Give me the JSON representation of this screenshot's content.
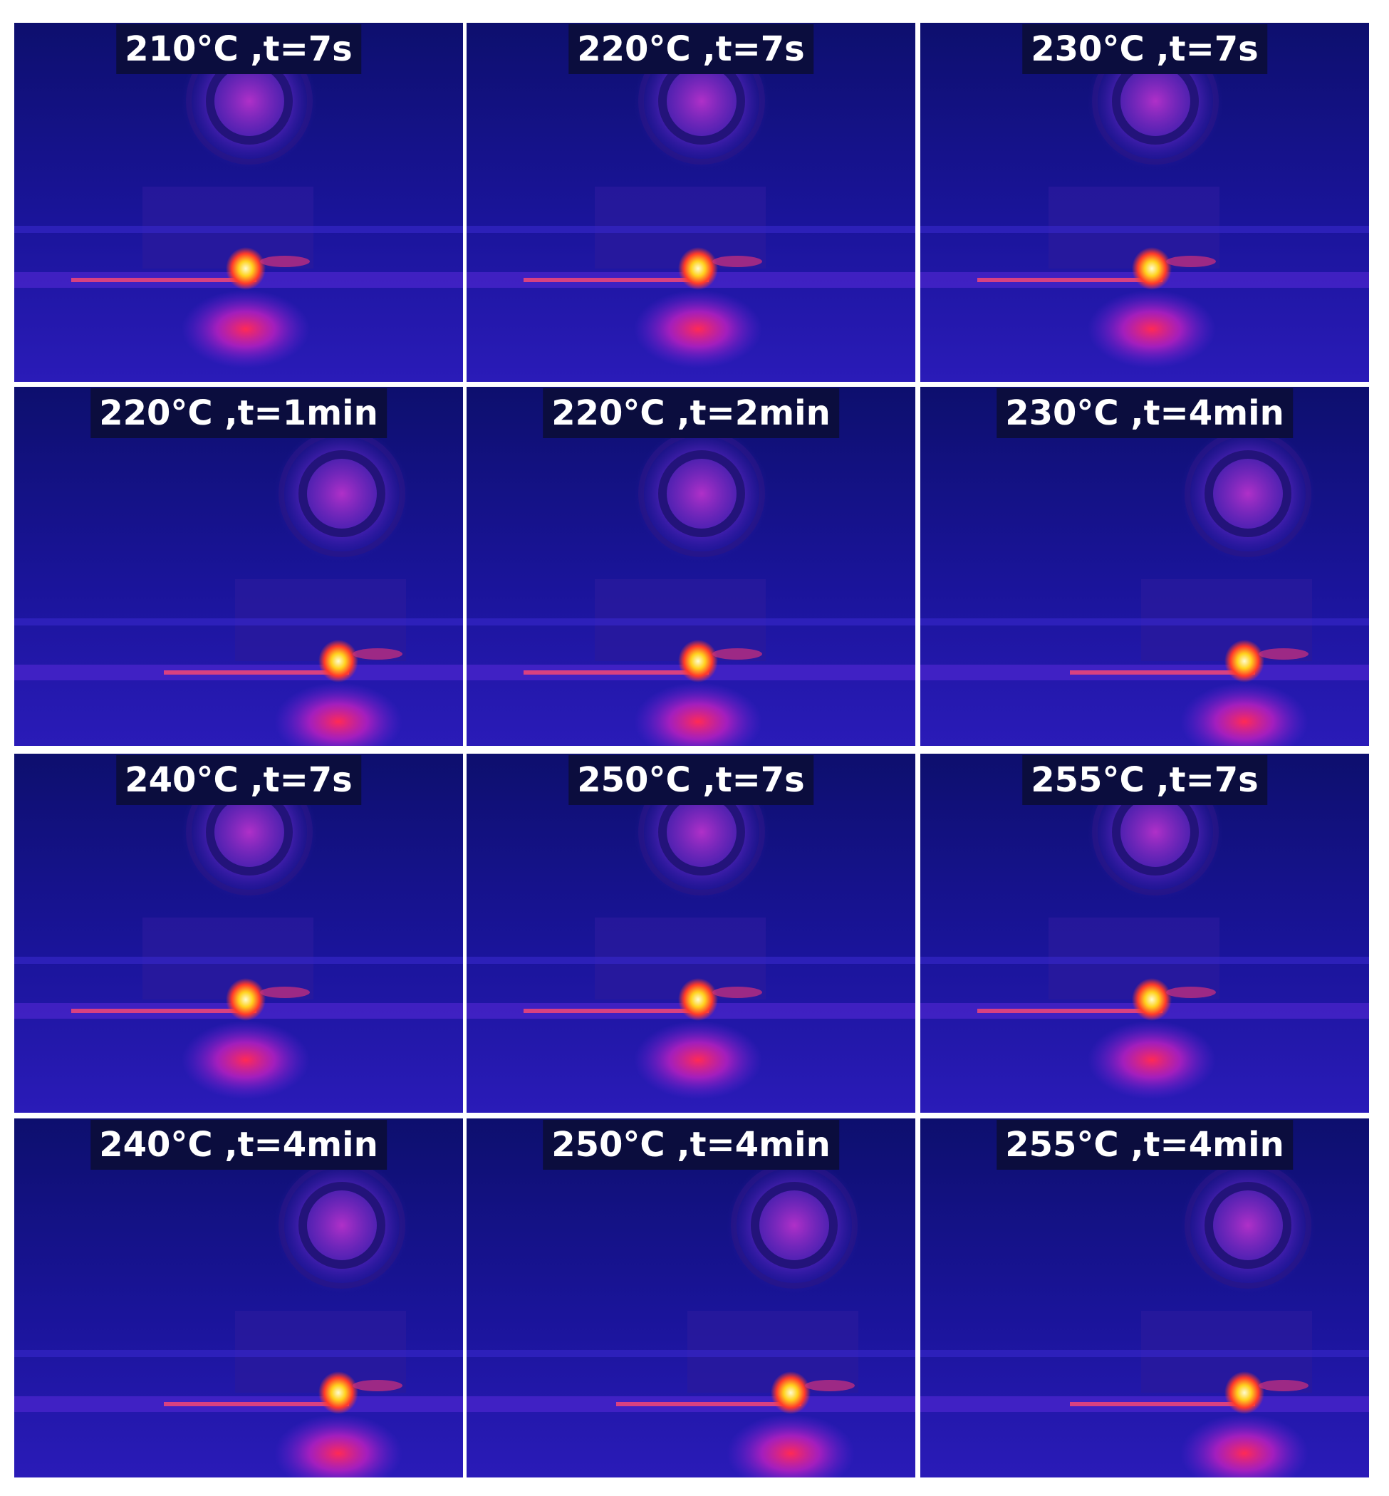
{
  "colors": {
    "background": "#11117a",
    "label_background": "#0b0d3e",
    "label_text": "#ffffff",
    "divider": "#ffffff"
  },
  "panels": [
    {
      "label": "210°C ,t=7s"
    },
    {
      "label": "220°C ,t=7s"
    },
    {
      "label": "230°C ,t=7s"
    },
    {
      "label": "220°C ,t=1min"
    },
    {
      "label": "220°C ,t=2min"
    },
    {
      "label": "230°C ,t=4min"
    },
    {
      "label": "240°C ,t=7s"
    },
    {
      "label": "250°C ,t=7s"
    },
    {
      "label": "255°C ,t=7s"
    },
    {
      "label": "240°C ,t=4min"
    },
    {
      "label": "250°C ,t=4min"
    },
    {
      "label": "255°C ,t=4min"
    }
  ]
}
